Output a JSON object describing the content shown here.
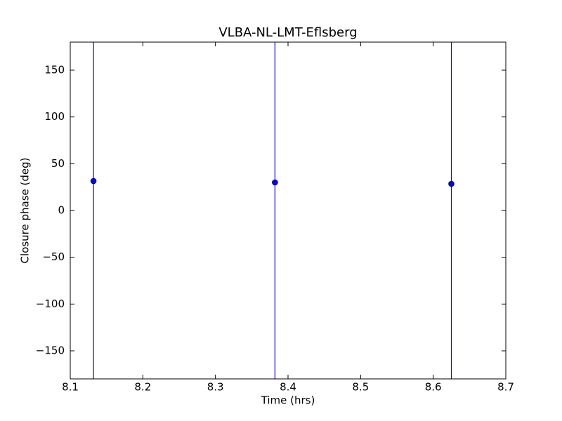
{
  "chart_data": {
    "type": "errorbar",
    "title": "VLBA-NL-LMT-Eflsberg",
    "xlabel": "Time (hrs)",
    "ylabel": "Closure phase (deg)",
    "x": [
      8.132,
      8.382,
      8.625
    ],
    "values": [
      31.5,
      30,
      28.5
    ],
    "errors": [
      220,
      220,
      220
    ],
    "color": "#0000ff",
    "xlim": [
      8.1,
      8.7
    ],
    "xticks": [
      8.1,
      8.2,
      8.3,
      8.4,
      8.5,
      8.6,
      8.7
    ],
    "ylim": [
      -180,
      180
    ],
    "yticks": [
      {
        "value": -150,
        "label": "−150"
      },
      {
        "value": -100,
        "label": "−100"
      },
      {
        "value": -50,
        "label": "−50"
      },
      0,
      50,
      100,
      150
    ],
    "grid": false
  }
}
